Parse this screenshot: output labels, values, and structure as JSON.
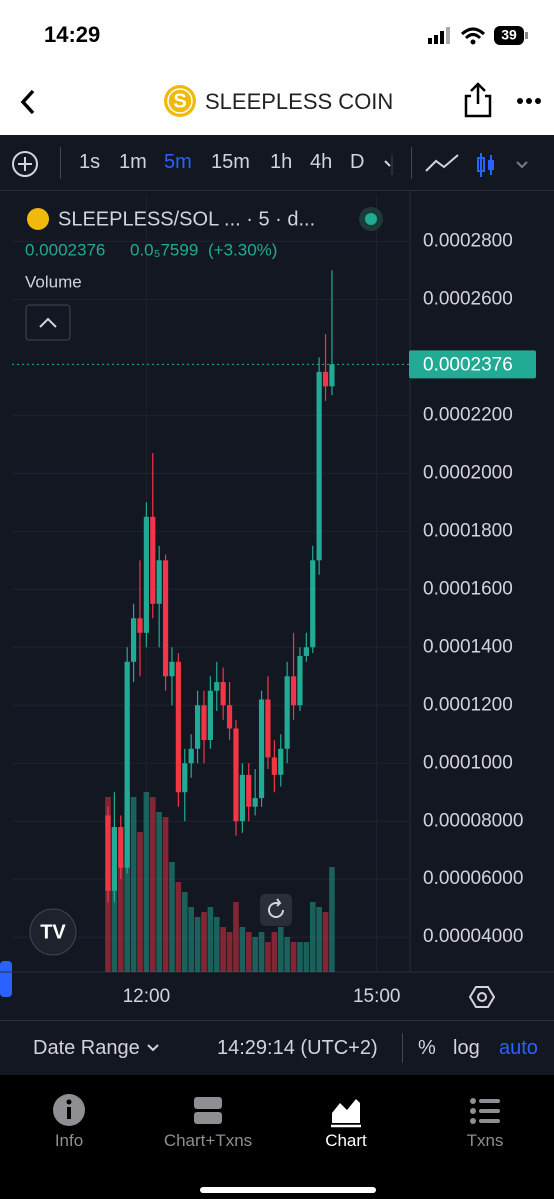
{
  "status_bar": {
    "time": "14:29",
    "battery": "39"
  },
  "header": {
    "coin_icon": "S",
    "title": "SLEEPLESS COIN"
  },
  "toolbar": {
    "intervals": [
      "1s",
      "1m",
      "5m",
      "15m",
      "1h",
      "4h",
      "D"
    ],
    "selected_interval": "5m"
  },
  "chart_data": {
    "type": "candlestick",
    "legend": {
      "symbol": "SLEEPLESS/SOL ... · 5 · d...",
      "last": "0.0002376",
      "change": "0.0₅7599",
      "change_pct": "(+3.30%)",
      "volume_label": "Volume"
    },
    "up_color": "#22ab94",
    "down_color": "#f23645",
    "x": [
      690,
      695,
      700,
      705,
      710,
      715,
      720,
      725,
      730,
      735,
      740,
      745,
      750,
      755,
      760,
      765,
      770,
      775,
      780,
      785,
      790,
      795,
      800,
      805,
      810,
      815,
      820,
      825,
      830,
      835,
      840,
      845,
      850,
      855,
      860,
      865
    ],
    "open": [
      8.2e-05,
      5.6e-05,
      7.8e-05,
      6.4e-05,
      0.000135,
      0.00015,
      0.000145,
      0.000185,
      0.000155,
      0.00017,
      0.00013,
      0.000135,
      9e-05,
      0.0001,
      0.000105,
      0.00012,
      0.000108,
      0.000125,
      0.000128,
      0.00012,
      0.000112,
      8e-05,
      9.6e-05,
      8.5e-05,
      8.8e-05,
      0.000122,
      0.000102,
      9.6e-05,
      0.000105,
      0.00013,
      0.00012,
      0.000137,
      0.00014,
      0.00017,
      0.000235,
      0.00023
    ],
    "high": [
      8.5e-05,
      9e-05,
      8.2e-05,
      0.00014,
      0.000155,
      0.00017,
      0.00019,
      0.000207,
      0.000175,
      0.000172,
      0.00014,
      0.000138,
      0.000105,
      0.00011,
      0.000125,
      0.000125,
      0.00013,
      0.000135,
      0.000133,
      0.000128,
      0.000115,
      0.0001,
      0.0001,
      9.8e-05,
      0.000125,
      0.00013,
      0.000108,
      0.00011,
      0.000135,
      0.000145,
      0.00014,
      0.000145,
      0.000175,
      0.00024,
      0.000248,
      0.00027
    ],
    "low": [
      5.2e-05,
      5.2e-05,
      6e-05,
      6.2e-05,
      0.000128,
      0.00013,
      0.00014,
      0.00015,
      0.00014,
      0.000125,
      0.00012,
      8.5e-05,
      8e-05,
      9.5e-05,
      0.0001,
      0.0001,
      0.000105,
      0.000118,
      0.000115,
      0.000108,
      7.5e-05,
      7.6e-05,
      8e-05,
      8.2e-05,
      8.5e-05,
      9.8e-05,
      9e-05,
      9.2e-05,
      0.0001,
      0.000115,
      0.000118,
      0.000135,
      0.000138,
      0.000165,
      0.000225,
      0.000227
    ],
    "close": [
      5.6e-05,
      7.8e-05,
      6.4e-05,
      0.000135,
      0.00015,
      0.000145,
      0.000185,
      0.000155,
      0.00017,
      0.00013,
      0.000135,
      9e-05,
      0.0001,
      0.000105,
      0.00012,
      0.000108,
      0.000125,
      0.000128,
      0.00012,
      0.000112,
      8e-05,
      9.6e-05,
      8.5e-05,
      8.8e-05,
      0.000122,
      0.000102,
      9.6e-05,
      0.000105,
      0.00013,
      0.00012,
      0.000137,
      0.00014,
      0.00017,
      0.000235,
      0.00023,
      0.0002376
    ],
    "volumes": [
      175,
      145,
      110,
      180,
      175,
      140,
      180,
      175,
      160,
      155,
      110,
      90,
      80,
      65,
      55,
      60,
      65,
      55,
      45,
      40,
      70,
      45,
      40,
      35,
      40,
      30,
      40,
      45,
      35,
      30,
      30,
      30,
      70,
      65,
      60,
      105
    ],
    "volume_ylim": [
      0,
      200
    ],
    "ylim": [
      2.8e-05,
      0.000296
    ],
    "yticks": [
      {
        "value": 0.00028,
        "label": "0.0002800"
      },
      {
        "value": 0.00026,
        "label": "0.0002600"
      },
      {
        "value": 0.00022,
        "label": "0.0002200"
      },
      {
        "value": 0.0002,
        "label": "0.0002000"
      },
      {
        "value": 0.00018,
        "label": "0.0001800"
      },
      {
        "value": 0.00016,
        "label": "0.0001600"
      },
      {
        "value": 0.00014,
        "label": "0.0001400"
      },
      {
        "value": 0.00012,
        "label": "0.0001200"
      },
      {
        "value": 0.0001,
        "label": "0.0001000"
      },
      {
        "value": 8e-05,
        "label": "0.00008000"
      },
      {
        "value": 6e-05,
        "label": "0.00006000"
      },
      {
        "value": 4e-05,
        "label": "0.00004000"
      }
    ],
    "last_price": {
      "value": 0.0002376,
      "label": "0.0002376"
    },
    "xlim": [
      615,
      926
    ],
    "xticks": [
      {
        "value": 720,
        "label": "12:00"
      },
      {
        "value": 900,
        "label": "15:00"
      }
    ],
    "grid": true
  },
  "footer": {
    "date_range": "Date Range",
    "time": "14:29:14 (UTC+2)",
    "percent": "%",
    "log": "log",
    "auto": "auto"
  },
  "tabs": [
    "Info",
    "Chart+Txns",
    "Chart",
    "Txns"
  ],
  "active_tab": "Chart"
}
